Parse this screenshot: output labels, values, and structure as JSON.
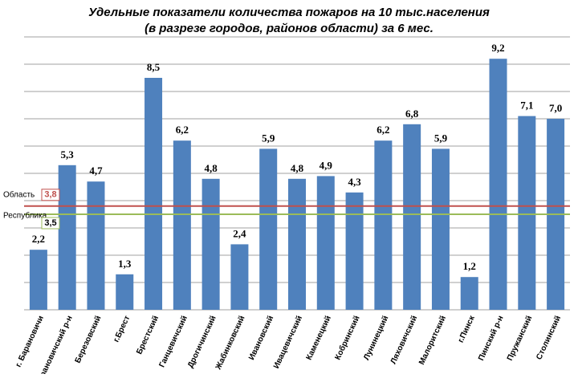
{
  "chart_data": {
    "type": "bar",
    "title": [
      "Удельные показатели количества пожаров на 10 тыс.населения",
      "(в разрезе городов, районов области) за 6 мес."
    ],
    "categories": [
      "г. Барановичи",
      "Барановичский р-н",
      "Березовский",
      "г.Брест",
      "Брестский",
      "Ганцевичский",
      "Дрогичинский",
      "Жабинковский",
      "Ивановский",
      "Ивацевичский",
      "Каменецкий",
      "Кобринский",
      "Лунинецкий",
      "Ляховичский",
      "Малоритский",
      "г.Пинск",
      "Пинский р-н",
      "Пружанский",
      "Столинский"
    ],
    "values": [
      2.2,
      5.3,
      4.7,
      1.3,
      8.5,
      6.2,
      4.8,
      2.4,
      5.9,
      4.8,
      4.9,
      4.3,
      6.2,
      6.8,
      5.9,
      1.2,
      9.2,
      7.1,
      7.0
    ],
    "value_labels": [
      "2,2",
      "5,3",
      "4,7",
      "1,3",
      "8,5",
      "6,2",
      "4,8",
      "2,4",
      "5,9",
      "4,8",
      "4,9",
      "4,3",
      "6,2",
      "6,8",
      "5,9",
      "1,2",
      "9,2",
      "7,1",
      "7,0"
    ],
    "color": "#4f81bd",
    "ylim": [
      0,
      10
    ],
    "yticks": [
      0,
      1,
      2,
      3,
      4,
      5,
      6,
      7,
      8,
      9,
      10
    ],
    "grid": true,
    "reference_lines": [
      {
        "label": "Область",
        "value": 3.8,
        "value_label": "3,8",
        "color": "#c0504d"
      },
      {
        "label": "Республика",
        "value": 3.5,
        "value_label": "3,5",
        "color": "#9bbb59"
      }
    ]
  }
}
